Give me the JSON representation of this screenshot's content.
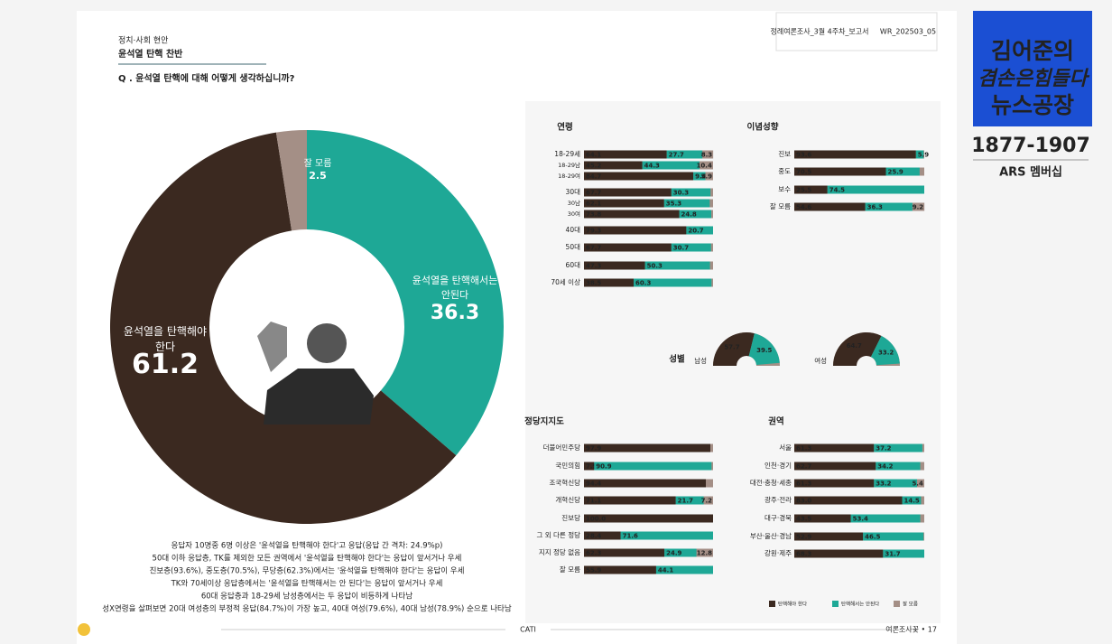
{
  "header": {
    "report_name": "정례여론조사_3월 4주차_보고서",
    "report_code": "WR_202503_05",
    "section": "정치·사회 현안",
    "topic": "윤석열 탄핵 찬반",
    "question": "Q . 윤석열 탄핵에 대해 어떻게 생각하십니까?"
  },
  "chart_data": [
    {
      "type": "donut",
      "categories": [
        "윤석열을 탄핵해서는 안된다",
        "윤석열을 탄핵해야 한다",
        "잘 모름"
      ],
      "values": [
        36.3,
        61.2,
        2.5
      ],
      "colors": [
        "#1ea896",
        "#3b2920",
        "#a48f86"
      ]
    },
    {
      "type": "stacked-bar",
      "title": "연령",
      "xlim": [
        0,
        100
      ],
      "categories": [
        "18-29세",
        "18-29남",
        "18-29여",
        "30대",
        "30남",
        "30여",
        "40대",
        "50대",
        "60대",
        "70세 이상"
      ],
      "series": [
        {
          "color": "#3b2920",
          "values": [
            64.1,
            45.2,
            84.7,
            67.7,
            62.1,
            73.8,
            79.3,
            67.7,
            47.3,
            38.5
          ]
        },
        {
          "color": "#1ea896",
          "values": [
            27.7,
            44.3,
            9.4,
            30.3,
            35.3,
            24.8,
            20.7,
            30.7,
            50.3,
            60.3
          ]
        },
        {
          "color": "#a48f86",
          "values": [
            8.3,
            10.4,
            5.9,
            null,
            null,
            null,
            null,
            null,
            null,
            null
          ]
        }
      ]
    },
    {
      "type": "stacked-bar",
      "title": "이념성향",
      "xlim": [
        0,
        100
      ],
      "categories": [
        "진보",
        "중도",
        "보수",
        "잘 모름"
      ],
      "series": [
        {
          "color": "#3b2920",
          "values": [
            93.6,
            70.5,
            25.5,
            54.6
          ]
        },
        {
          "color": "#1ea896",
          "values": [
            5.9,
            25.9,
            74.5,
            36.3
          ]
        },
        {
          "color": "#a48f86",
          "values": [
            null,
            null,
            null,
            9.2
          ]
        }
      ]
    },
    {
      "type": "semi-donut",
      "title": "성별",
      "xlim": [
        0,
        100
      ],
      "categories": [
        "남성",
        "여성"
      ],
      "series": [
        {
          "color": "#3b2920",
          "values": [
            57.7,
            64.7
          ]
        },
        {
          "color": "#1ea896",
          "values": [
            39.5,
            33.2
          ]
        }
      ]
    },
    {
      "type": "stacked-bar",
      "title": "정당지지도",
      "xlim": [
        0,
        100
      ],
      "categories": [
        "더불어민주당",
        "국민의힘",
        "조국혁신당",
        "개혁신당",
        "진보당",
        "그 외 다른 정당",
        "지지 정당 없음",
        "잘 모름"
      ],
      "series": [
        {
          "color": "#3b2920",
          "values": [
            97.9,
            7.9,
            94.4,
            71.1,
            100,
            28.4,
            62.3,
            55.9
          ],
          "value_labels": [
            "97.9",
            "7.9",
            "94.4",
            "71.1",
            "100.0",
            "28.4",
            "62.3",
            "55.9"
          ]
        },
        {
          "color": "#1ea896",
          "values": [
            null,
            90.9,
            null,
            21.7,
            null,
            71.6,
            24.9,
            44.1
          ]
        },
        {
          "color": "#a48f86",
          "values": [
            null,
            null,
            null,
            7.2,
            null,
            null,
            12.8,
            null
          ]
        }
      ]
    },
    {
      "type": "stacked-bar",
      "title": "권역",
      "xlim": [
        0,
        100
      ],
      "categories": [
        "서울",
        "인천·경기",
        "대전·충청·세종",
        "광주·전라",
        "대구·경북",
        "부산·울산·경남",
        "강원·제주"
      ],
      "series": [
        {
          "color": "#3b2920",
          "values": [
            61.3,
            62.7,
            61.3,
            83,
            43.5,
            52.9,
            68.3
          ],
          "value_labels": [
            "61.3",
            "62.7",
            "61.3",
            "83.0",
            "43.5",
            "52.9",
            "68.3"
          ]
        },
        {
          "color": "#1ea896",
          "values": [
            37.2,
            34.2,
            33.2,
            14.5,
            53.4,
            46.5,
            31.7
          ]
        },
        {
          "color": "#a48f86",
          "values": [
            null,
            null,
            5.4,
            null,
            null,
            null,
            null
          ]
        }
      ]
    }
  ],
  "legend": [
    {
      "name": "탄핵해야 한다",
      "color": "#3b2920"
    },
    {
      "name": "탄핵해서는 안된다",
      "color": "#1ea896"
    },
    {
      "name": "잘 모름",
      "color": "#a48f86"
    }
  ],
  "summary": [
    "응답자 10명중 6명 이상은 '윤석열을 탄핵해야 한다'고 응답(응답 간 격차: 24.9%p)",
    "50대 이하 응답층, TK를 제외한 모든 권역에서 '윤석열을 탄핵해야 한다'는 응답이 앞서거나 우세",
    "진보층(93.6%), 중도층(70.5%), 무당층(62.3%)에서는 '윤석열을 탄핵해야 한다'는 응답이 우세",
    "TK와 70세이상 응답층에서는 '윤석열을 탄핵해서는 안 된다'는 응답이 앞서거나 우세",
    "60대 응답층과 18-29세 남성층에서는 두 응답이 비등하게 나타남",
    "성X연령을 살펴보면 20대 여성층의 부정적 응답(84.7%)이 가장 높고, 40대 여성(79.6%), 40대 남성(78.9%) 순으로 나타남"
  ],
  "footer": {
    "method": "CATI",
    "page": "여론조사꽃 • 17"
  },
  "logo": {
    "line1": "김어준의",
    "line2": "겸손은힘들다",
    "line3": "뉴스공장",
    "phone": "1877-1907",
    "membership": "ARS 멤버십"
  }
}
